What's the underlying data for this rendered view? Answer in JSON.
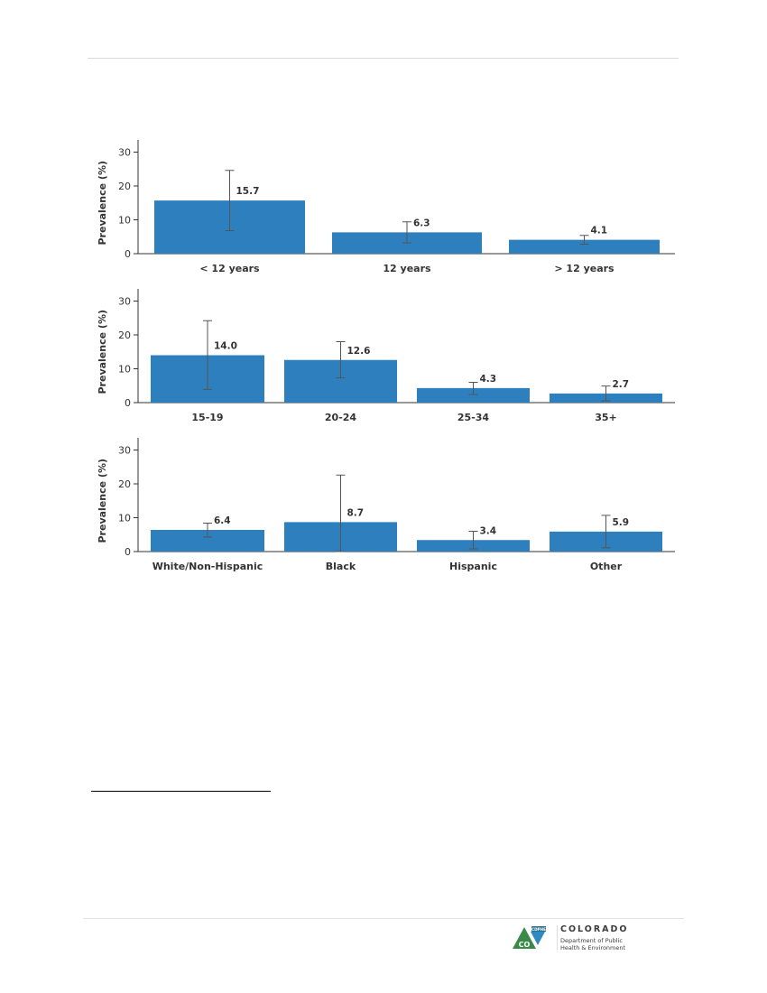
{
  "chart_data": [
    {
      "type": "bar",
      "ylabel": "Prevalence (%)",
      "ylim": [
        0,
        30
      ],
      "yticks": [
        0,
        10,
        20,
        30
      ],
      "categories": [
        "< 12 years",
        "12 years",
        "> 12 years"
      ],
      "values": [
        15.7,
        6.3,
        4.1
      ],
      "value_labels": [
        "15.7",
        "6.3",
        "4.1"
      ],
      "error_low": [
        6.8,
        3.2,
        2.8
      ],
      "error_high": [
        24.6,
        9.4,
        5.4
      ],
      "color": "#2e7fbd"
    },
    {
      "type": "bar",
      "ylabel": "Prevalence (%)",
      "ylim": [
        0,
        30
      ],
      "yticks": [
        0,
        10,
        20,
        30
      ],
      "categories": [
        "15-19",
        "20-24",
        "25-34",
        "35+"
      ],
      "values": [
        14.0,
        12.6,
        4.3,
        2.7
      ],
      "value_labels": [
        "14.0",
        "12.6",
        "4.3",
        "2.7"
      ],
      "error_low": [
        3.9,
        7.3,
        2.4,
        0.5
      ],
      "error_high": [
        24.2,
        18.0,
        6.0,
        4.9
      ],
      "color": "#2e7fbd"
    },
    {
      "type": "bar",
      "ylabel": "Prevalence (%)",
      "ylim": [
        0,
        30
      ],
      "yticks": [
        0,
        10,
        20,
        30
      ],
      "categories": [
        "White/Non-Hispanic",
        "Black",
        "Hispanic",
        "Other"
      ],
      "values": [
        6.4,
        8.7,
        3.4,
        5.9
      ],
      "value_labels": [
        "6.4",
        "8.7",
        "3.4",
        "5.9"
      ],
      "error_low": [
        4.3,
        0.0,
        0.8,
        1.1
      ],
      "error_high": [
        8.4,
        22.6,
        6.0,
        10.7
      ],
      "color": "#2e7fbd"
    }
  ],
  "logo": {
    "badge": "CDPHE",
    "letters": "CO",
    "state": "COLORADO",
    "dept_line1": "Department of Public",
    "dept_line2": "Health & Environment"
  }
}
